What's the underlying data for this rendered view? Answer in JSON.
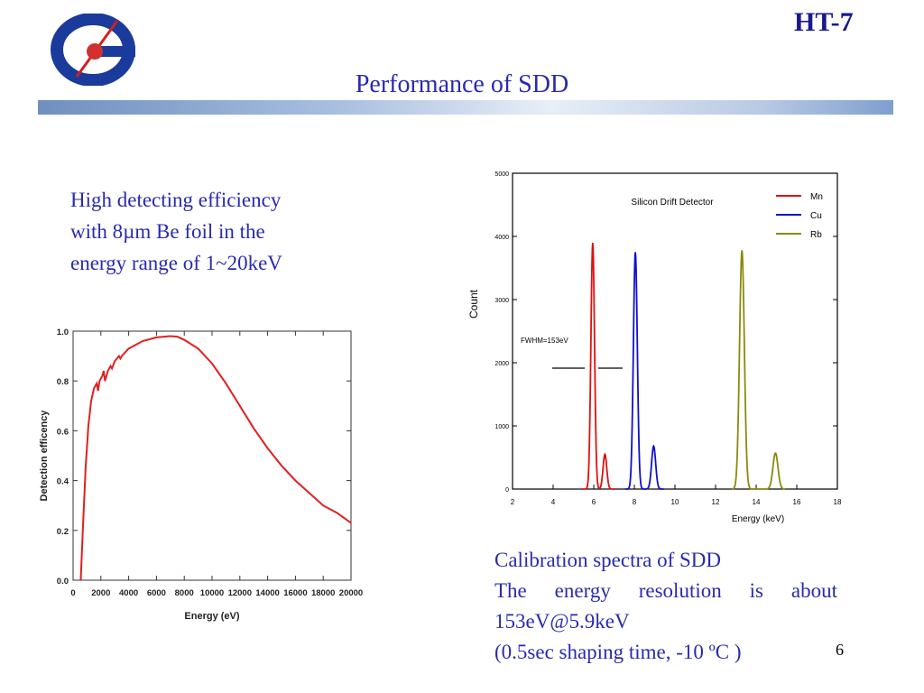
{
  "header": {
    "code": "HT-7",
    "title": "Performance of SDD"
  },
  "left_text": [
    "High detecting efficiency",
    "with 8µm Be foil in the",
    "energy range of 1~20keV"
  ],
  "right_text": [
    "Calibration spectra of SDD",
    "The energy resolution is about",
    "153eV@5.9keV",
    "(0.5sec shaping time, -10 ºC )"
  ],
  "page_number": "6",
  "chart_data": [
    {
      "type": "line",
      "title": "",
      "xlabel": "Energy (eV)",
      "ylabel": "Detection efficency",
      "xlim": [
        0,
        20000
      ],
      "ylim": [
        0,
        1.0
      ],
      "xticks": [
        "0",
        "2000",
        "4000",
        "6000",
        "8000",
        "10000",
        "12000",
        "14000",
        "16000",
        "18000",
        "20000"
      ],
      "yticks": [
        "0.0",
        "0.2",
        "0.4",
        "0.6",
        "0.8",
        "1.0"
      ],
      "color": "#e02020",
      "series": [
        {
          "name": "efficiency",
          "x": [
            550,
            700,
            900,
            1100,
            1300,
            1500,
            1700,
            1800,
            1900,
            2100,
            2200,
            2300,
            2500,
            2700,
            2800,
            3000,
            3300,
            3400,
            3500,
            4000,
            5000,
            6000,
            7000,
            7500,
            8000,
            9000,
            10000,
            11000,
            12000,
            13000,
            14000,
            15000,
            16000,
            17000,
            18000,
            19000,
            20000
          ],
          "y": [
            0.0,
            0.2,
            0.45,
            0.62,
            0.72,
            0.77,
            0.79,
            0.76,
            0.8,
            0.82,
            0.84,
            0.8,
            0.84,
            0.86,
            0.85,
            0.88,
            0.9,
            0.89,
            0.9,
            0.93,
            0.96,
            0.975,
            0.98,
            0.978,
            0.965,
            0.93,
            0.87,
            0.79,
            0.7,
            0.61,
            0.53,
            0.46,
            0.4,
            0.35,
            0.3,
            0.27,
            0.23
          ]
        }
      ]
    },
    {
      "type": "line",
      "title": "Silicon Drift Detector",
      "xlabel": "Energy (keV)",
      "ylabel": "Count",
      "xlim": [
        2,
        18
      ],
      "ylim": [
        0,
        5000
      ],
      "xticks": [
        "2",
        "4",
        "6",
        "8",
        "10",
        "12",
        "14",
        "16",
        "18"
      ],
      "yticks": [
        "0",
        "1000",
        "2000",
        "3000",
        "4000",
        "5000"
      ],
      "annotation": "FWHM=153eV",
      "series": [
        {
          "name": "Mn",
          "color": "#e01010",
          "peaks": [
            [
              5.95,
              3900
            ],
            [
              6.55,
              550
            ]
          ]
        },
        {
          "name": "Cu",
          "color": "#1010d0",
          "peaks": [
            [
              8.05,
              3750
            ],
            [
              8.95,
              680
            ]
          ]
        },
        {
          "name": "Rb",
          "color": "#8a8a10",
          "peaks": [
            [
              13.3,
              3780
            ],
            [
              14.95,
              570
            ]
          ]
        }
      ]
    }
  ]
}
